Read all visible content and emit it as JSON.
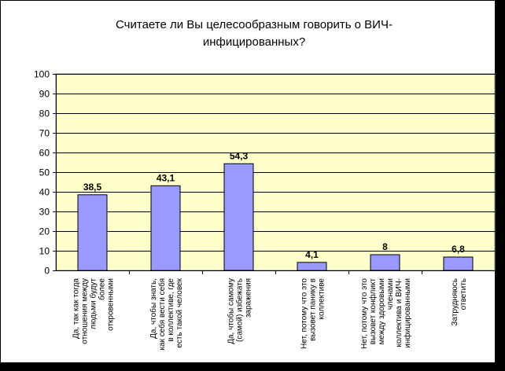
{
  "chart_data": {
    "type": "bar",
    "title": [
      "Считаете ли Вы целесообразным говорить о ВИЧ-",
      "инфицированных?"
    ],
    "ylabel": "",
    "ylim": [
      0,
      100
    ],
    "yticks": [
      0,
      10,
      20,
      30,
      40,
      50,
      60,
      70,
      80,
      90,
      100
    ],
    "grid": true,
    "legend": "none",
    "categories": [
      [
        "Да, так как тогда",
        "отношения между",
        "людьми будут",
        "более",
        "откровенными"
      ],
      [
        "Да, чтобы знать,",
        "как себя вести себя",
        "в коллективе, где",
        "есть такой человек"
      ],
      [
        "Да, чтобы самому",
        "(самой) избежать",
        "заражения"
      ],
      [
        "Нет, потому что это",
        "вызовет панику в",
        "коллективе"
      ],
      [
        "Нет, потому что это",
        "вызовет конфликт",
        "между здоровыми",
        "членами",
        "коллектива и ВИЧ-",
        "инфицированными"
      ],
      [
        "Затрудняюсь",
        "ответить"
      ]
    ],
    "values": [
      38.5,
      43.1,
      54.3,
      4.1,
      8,
      6.8
    ],
    "value_labels": [
      "38,5",
      "43,1",
      "54,3",
      "4,1",
      "8",
      "6,8"
    ],
    "colors": {
      "plot_bg": "#ffffcc",
      "bar_fill": "#9999ff",
      "bar_stroke": "#000000",
      "grid": "#000000",
      "page_bg": "#ffffff",
      "frame_bg": "#000000"
    }
  }
}
